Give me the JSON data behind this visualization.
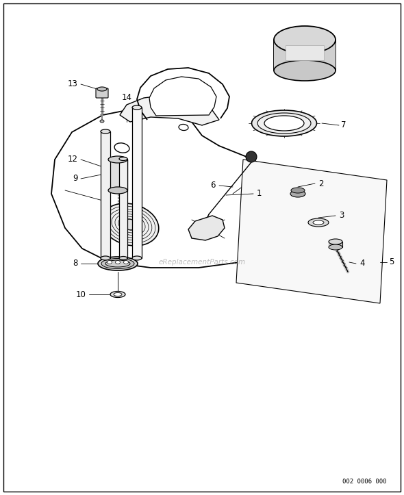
{
  "bg_color": "#ffffff",
  "line_color": "#000000",
  "part_color": "#888888",
  "light_gray": "#e8e8e8",
  "mid_gray": "#cccccc",
  "watermark": "eReplacementParts.com",
  "part_number": "002 0006 000",
  "figsize": [
    5.9,
    7.23
  ],
  "dpi": 100
}
